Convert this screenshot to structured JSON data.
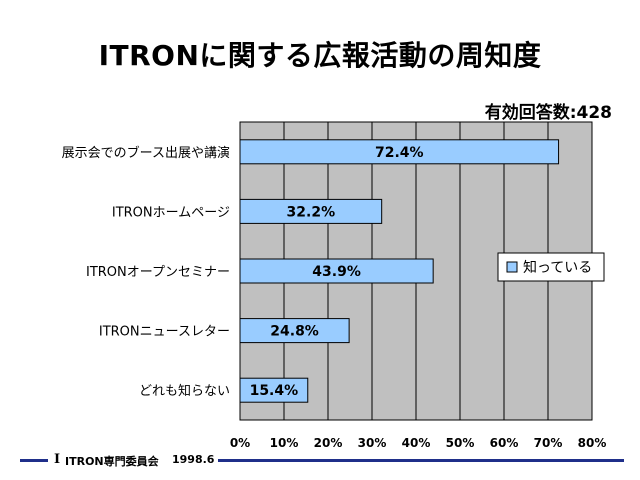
{
  "title": "ITRONに関する広報活動の周知度",
  "respondents_label": "有効回答数:428",
  "footer": {
    "logo": "I",
    "org": "ITRON専門委員会",
    "date": "1998.6"
  },
  "colors": {
    "bar_fill": "#99ccff",
    "bar_stroke": "#000000",
    "plot_bg": "#c0c0c0",
    "accent_line": "#1f2f8a"
  },
  "chart_data": {
    "type": "bar",
    "orientation": "horizontal",
    "categories": [
      "展示会でのブース出展や講演",
      "ITRONホームページ",
      "ITRONオープンセミナー",
      "ITRONニュースレター",
      "どれも知らない"
    ],
    "series": [
      {
        "name": "知っている",
        "values": [
          72.4,
          32.2,
          43.9,
          24.8,
          15.4
        ]
      }
    ],
    "data_labels": [
      "72.4%",
      "32.2%",
      "43.9%",
      "24.8%",
      "15.4%"
    ],
    "xlim": [
      0,
      80
    ],
    "xticks": [
      "0%",
      "10%",
      "20%",
      "30%",
      "40%",
      "50%",
      "60%",
      "70%",
      "80%"
    ],
    "grid": true,
    "legend_position": "right"
  }
}
